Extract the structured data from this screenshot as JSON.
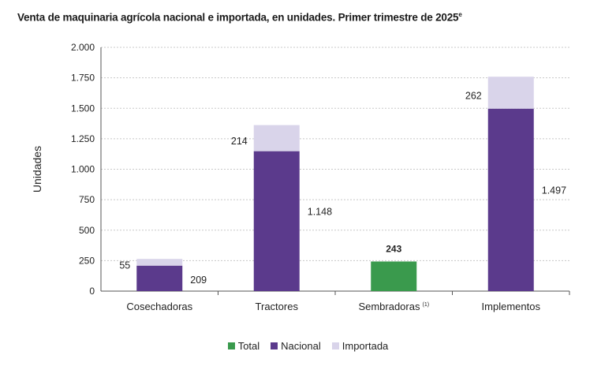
{
  "chart_data": {
    "type": "bar",
    "stacked": true,
    "title": "Venta de maquinaria agrícola nacional e importada, en unidades. Primer trimestre de 2025",
    "title_superscript": "e",
    "ylabel": "Unidades",
    "ylim": [
      0,
      2000
    ],
    "yticks": [
      0,
      250,
      500,
      750,
      1000,
      1250,
      1500,
      1750,
      2000
    ],
    "ytick_labels": [
      "0",
      "250",
      "500",
      "750",
      "1.000",
      "1.250",
      "1.500",
      "1.750",
      "2.000"
    ],
    "grid": true,
    "categories": [
      "Cosechadoras",
      "Tractores",
      "Sembradoras",
      "Implementos"
    ],
    "category_superscripts": [
      "",
      "",
      "(1)",
      ""
    ],
    "series": [
      {
        "name": "Total",
        "color": "#3a9a4d",
        "values": [
          null,
          null,
          243,
          null
        ],
        "labels": [
          "",
          "",
          "243",
          ""
        ]
      },
      {
        "name": "Nacional",
        "color": "#5b3a8c",
        "values": [
          209,
          1148,
          null,
          1497
        ],
        "labels": [
          "209",
          "1.148",
          "",
          "1.497"
        ]
      },
      {
        "name": "Importada",
        "color": "#d9d4ea",
        "values": [
          55,
          214,
          null,
          262
        ],
        "labels": [
          "55",
          "214",
          "",
          "262"
        ]
      }
    ],
    "legend_position": "bottom"
  }
}
